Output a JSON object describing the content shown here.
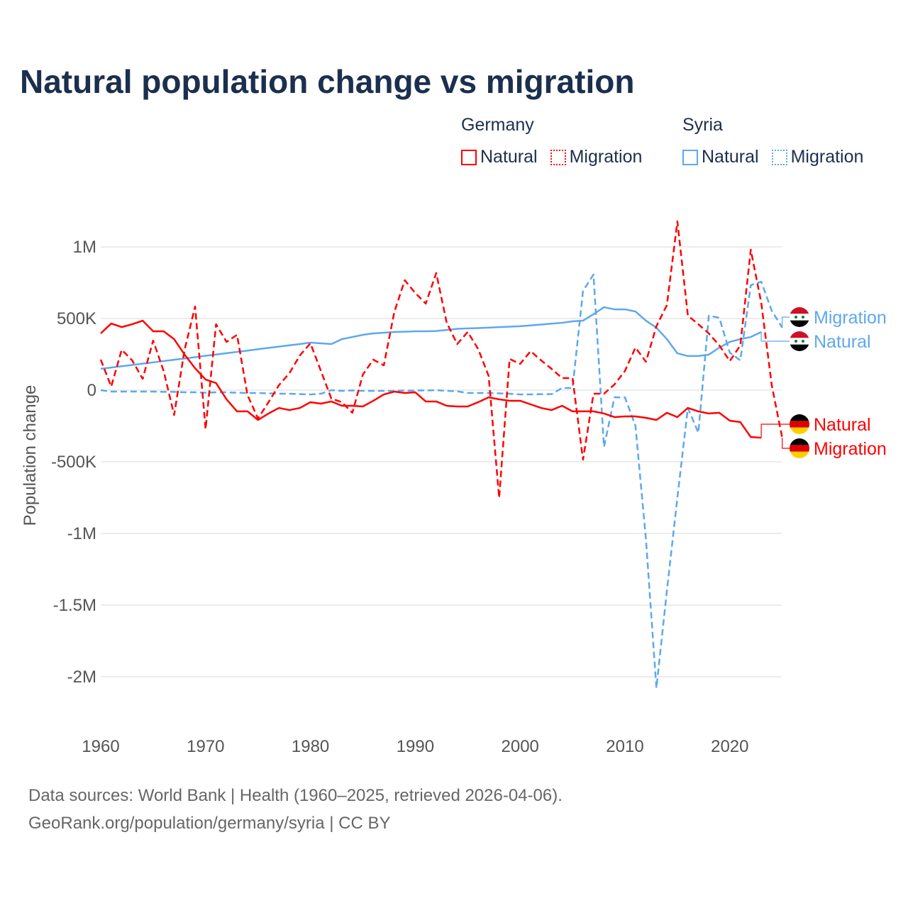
{
  "title": "Natural population change vs migration",
  "legend": {
    "groups": [
      {
        "name": "Germany",
        "color": "#ff0000",
        "items": [
          "Natural",
          "Migration"
        ]
      },
      {
        "name": "Syria",
        "color": "#5ea8ec",
        "items": [
          "Natural",
          "Migration"
        ]
      }
    ]
  },
  "footer": {
    "line1": "Data sources: World Bank | Health (1960–2025, retrieved 2026-04-06).",
    "line2": "GeoRank.org/population/germany/syria | CC BY"
  },
  "chart_data": {
    "type": "line",
    "title": "Natural population change vs migration",
    "xlabel": "",
    "ylabel": "Population change",
    "xlim": [
      1960,
      2025
    ],
    "ylim": [
      -2200000,
      1200000
    ],
    "grid": true,
    "legend_position": "top-right",
    "x_ticks": [
      1960,
      1970,
      1980,
      1990,
      2000,
      2010,
      2020
    ],
    "x_tick_labels": [
      "1960",
      "1970",
      "1980",
      "1990",
      "2000",
      "2010",
      "2020"
    ],
    "y_ticks": [
      1000000,
      500000,
      0,
      -500000,
      -1000000,
      -1500000,
      -2000000
    ],
    "y_tick_labels": [
      "1M",
      "500K",
      "0",
      "-500K",
      "-1M",
      "-1.5M",
      "-2M"
    ],
    "series": [
      {
        "name": "Syria Migration",
        "end_label": "Migration",
        "country": "Syria",
        "color": "#5ea8ec",
        "dashed": true,
        "start_year": 1960,
        "values": [
          0,
          -10,
          -10,
          -10,
          -10,
          -10,
          -12,
          -12,
          -15,
          -15,
          -18,
          -15,
          -15,
          -18,
          -20,
          -20,
          -22,
          -25,
          -25,
          -28,
          -30,
          -25,
          0,
          -5,
          -2,
          -5,
          -5,
          -5,
          -5,
          -2,
          -3,
          -2,
          0,
          -5,
          -8,
          -20,
          -20,
          -20,
          -22,
          -25,
          -30,
          -30,
          -28,
          -28,
          15,
          15,
          693,
          807,
          -396,
          -50,
          -50,
          -248,
          -1040,
          -2079,
          -1400,
          -750,
          -124,
          -297,
          520,
          505,
          262,
          208,
          733,
          757,
          554,
          436
        ]
      },
      {
        "name": "Syria Natural",
        "end_label": "Natural",
        "country": "Syria",
        "color": "#5ea8ec",
        "dashed": false,
        "start_year": 1960,
        "values": [
          149,
          158,
          167,
          176,
          185,
          194,
          203,
          212,
          221,
          230,
          240,
          249,
          258,
          267,
          276,
          286,
          295,
          304,
          313,
          322,
          332,
          327,
          322,
          356,
          371,
          386,
          396,
          401,
          406,
          408,
          411,
          411,
          413,
          420,
          428,
          431,
          433,
          436,
          440,
          443,
          446,
          452,
          458,
          464,
          470,
          480,
          485,
          530,
          579,
          564,
          564,
          549,
          485,
          436,
          356,
          257,
          238,
          238,
          248,
          297,
          337,
          356,
          371,
          406
        ]
      },
      {
        "name": "Germany Natural",
        "end_label": "Natural",
        "country": "Germany",
        "color": "#ff0000",
        "dashed": false,
        "start_year": 1960,
        "values": [
          396,
          465,
          440,
          460,
          485,
          411,
          411,
          356,
          248,
          153,
          74,
          50,
          -64,
          -148,
          -148,
          -208,
          -163,
          -124,
          -139,
          -124,
          -84,
          -94,
          -79,
          -109,
          -109,
          -114,
          -74,
          -30,
          -10,
          -20,
          -15,
          -79,
          -79,
          -109,
          -114,
          -114,
          -84,
          -50,
          -64,
          -74,
          -74,
          -99,
          -124,
          -139,
          -109,
          -148,
          -148,
          -148,
          -163,
          -188,
          -183,
          -183,
          -193,
          -208,
          -158,
          -188,
          -124,
          -148,
          -163,
          -158,
          -213,
          -223,
          -327,
          -332
        ]
      },
      {
        "name": "Germany Migration",
        "end_label": "Migration",
        "country": "Germany",
        "color": "#ff0000",
        "dashed": true,
        "start_year": 1960,
        "values": [
          213,
          25,
          282,
          208,
          79,
          346,
          134,
          -173,
          282,
          584,
          -272,
          460,
          337,
          386,
          -35,
          -198,
          -84,
          35,
          119,
          243,
          327,
          134,
          -59,
          -84,
          -158,
          109,
          213,
          173,
          545,
          767,
          678,
          604,
          817,
          470,
          322,
          406,
          287,
          99,
          -752,
          218,
          183,
          272,
          208,
          149,
          84,
          84,
          -485,
          -25,
          -25,
          40,
          134,
          297,
          198,
          446,
          594,
          1178,
          520,
          460,
          396,
          312,
          203,
          312,
          980,
          609,
          35,
          -332
        ]
      }
    ],
    "value_units": "thousands"
  }
}
